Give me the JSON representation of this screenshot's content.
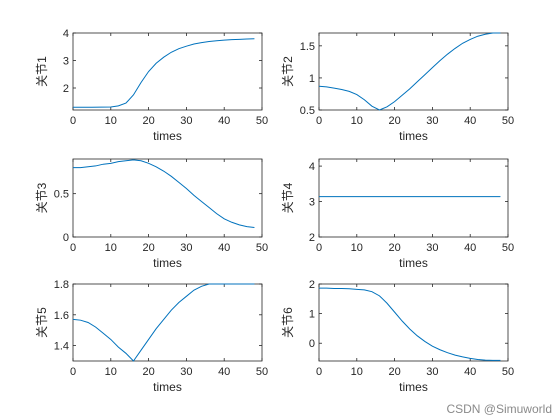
{
  "watermark": "CSDN @Simuworld",
  "chart_data": [
    {
      "type": "line",
      "xlabel": "times",
      "ylabel": "关节1",
      "xlim": [
        0,
        50
      ],
      "ylim": [
        1.2,
        4
      ],
      "xticks": [
        0,
        10,
        20,
        30,
        40,
        50
      ],
      "yticks": [
        2,
        3,
        4
      ],
      "color": "#0072bd",
      "series": [
        {
          "x": [
            0,
            5,
            10,
            12,
            14,
            16,
            18,
            20,
            22,
            24,
            26,
            28,
            30,
            32,
            34,
            36,
            38,
            40,
            42,
            44,
            46,
            48
          ],
          "values": [
            1.3,
            1.3,
            1.31,
            1.35,
            1.45,
            1.75,
            2.2,
            2.6,
            2.9,
            3.12,
            3.3,
            3.43,
            3.52,
            3.6,
            3.65,
            3.69,
            3.72,
            3.74,
            3.76,
            3.77,
            3.78,
            3.79
          ]
        }
      ]
    },
    {
      "type": "line",
      "xlabel": "times",
      "ylabel": "关节2",
      "xlim": [
        0,
        50
      ],
      "ylim": [
        0.5,
        1.7
      ],
      "xticks": [
        0,
        10,
        20,
        30,
        40,
        50
      ],
      "yticks": [
        0.5,
        1,
        1.5
      ],
      "color": "#0072bd",
      "series": [
        {
          "x": [
            0,
            2,
            4,
            6,
            8,
            10,
            12,
            14,
            16,
            18,
            20,
            22,
            24,
            26,
            28,
            30,
            32,
            34,
            36,
            38,
            40,
            42,
            44,
            46,
            48
          ],
          "values": [
            0.87,
            0.86,
            0.84,
            0.82,
            0.79,
            0.74,
            0.66,
            0.56,
            0.5,
            0.55,
            0.63,
            0.73,
            0.83,
            0.94,
            1.05,
            1.16,
            1.27,
            1.37,
            1.46,
            1.54,
            1.6,
            1.65,
            1.68,
            1.7,
            1.7
          ]
        }
      ]
    },
    {
      "type": "line",
      "xlabel": "times",
      "ylabel": "关节3",
      "xlim": [
        0,
        50
      ],
      "ylim": [
        0,
        0.9
      ],
      "xticks": [
        0,
        10,
        20,
        30,
        40,
        50
      ],
      "yticks": [
        0,
        0.5
      ],
      "color": "#0072bd",
      "series": [
        {
          "x": [
            0,
            2,
            4,
            6,
            8,
            10,
            12,
            14,
            16,
            18,
            20,
            22,
            24,
            26,
            28,
            30,
            32,
            34,
            36,
            38,
            40,
            42,
            44,
            46,
            48
          ],
          "values": [
            0.8,
            0.8,
            0.81,
            0.82,
            0.84,
            0.85,
            0.87,
            0.88,
            0.89,
            0.88,
            0.85,
            0.81,
            0.76,
            0.7,
            0.63,
            0.56,
            0.48,
            0.41,
            0.34,
            0.27,
            0.21,
            0.17,
            0.14,
            0.12,
            0.11
          ]
        }
      ]
    },
    {
      "type": "line",
      "xlabel": "times",
      "ylabel": "关节4",
      "xlim": [
        0,
        50
      ],
      "ylim": [
        2,
        4.2
      ],
      "xticks": [
        0,
        10,
        20,
        30,
        40,
        50
      ],
      "yticks": [
        2,
        3,
        4
      ],
      "color": "#0072bd",
      "series": [
        {
          "x": [
            0,
            48
          ],
          "values": [
            3.14,
            3.14
          ]
        }
      ]
    },
    {
      "type": "line",
      "xlabel": "times",
      "ylabel": "关节5",
      "xlim": [
        0,
        50
      ],
      "ylim": [
        1.3,
        1.8
      ],
      "xticks": [
        0,
        10,
        20,
        30,
        40,
        50
      ],
      "yticks": [
        1.4,
        1.6,
        1.8
      ],
      "color": "#0072bd",
      "series": [
        {
          "x": [
            0,
            2,
            4,
            6,
            8,
            10,
            12,
            14,
            16,
            18,
            20,
            22,
            24,
            26,
            28,
            30,
            32,
            34,
            36,
            38,
            40,
            42,
            44,
            46,
            48
          ],
          "values": [
            1.57,
            1.565,
            1.55,
            1.52,
            1.48,
            1.44,
            1.39,
            1.35,
            1.3,
            1.37,
            1.44,
            1.51,
            1.57,
            1.63,
            1.68,
            1.72,
            1.76,
            1.785,
            1.8,
            1.8,
            1.8,
            1.8,
            1.8,
            1.8,
            1.8
          ]
        }
      ]
    },
    {
      "type": "line",
      "xlabel": "times",
      "ylabel": "关节6",
      "xlim": [
        0,
        50
      ],
      "ylim": [
        -0.6,
        2
      ],
      "xticks": [
        0,
        10,
        20,
        30,
        40,
        50
      ],
      "yticks": [
        0,
        1,
        2
      ],
      "color": "#0072bd",
      "series": [
        {
          "x": [
            0,
            2,
            4,
            6,
            8,
            10,
            12,
            14,
            16,
            18,
            20,
            22,
            24,
            26,
            28,
            30,
            32,
            34,
            36,
            38,
            40,
            42,
            44,
            46,
            48
          ],
          "values": [
            1.86,
            1.86,
            1.85,
            1.85,
            1.84,
            1.82,
            1.8,
            1.74,
            1.6,
            1.35,
            1.05,
            0.75,
            0.48,
            0.25,
            0.06,
            -0.1,
            -0.22,
            -0.32,
            -0.4,
            -0.46,
            -0.51,
            -0.55,
            -0.57,
            -0.58,
            -0.58
          ]
        }
      ]
    }
  ]
}
